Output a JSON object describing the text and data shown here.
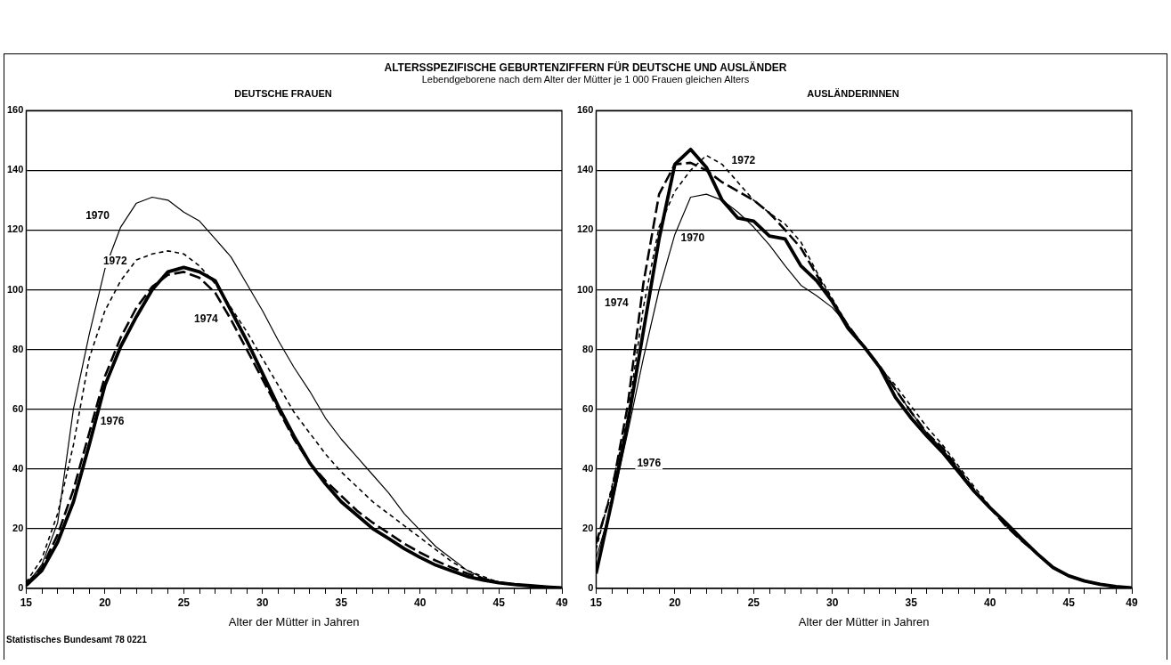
{
  "chart_data": [
    {
      "type": "other",
      "title": "ALTERSSPEZIFISCHE GEBURTENZIFFERN FÜR DEUTSCHE UND AUSLÄNDER",
      "subtitle": "Lebendgeborene nach dem Alter der Mütter je 1 000 Frauen gleichen Alters"
    },
    {
      "type": "line",
      "title": "DEUTSCHE FRAUEN",
      "xlabel": "Alter der Mütter in Jahren",
      "marker": "none",
      "grid": "y",
      "x": [
        15,
        16,
        17,
        18,
        19,
        20,
        21,
        22,
        23,
        24,
        25,
        26,
        27,
        28,
        29,
        30,
        31,
        32,
        33,
        34,
        35,
        36,
        37,
        38,
        39,
        40,
        41,
        42,
        43,
        44,
        45,
        46,
        47,
        48,
        49
      ],
      "xlim": [
        15,
        49
      ],
      "ylim": [
        0,
        160
      ],
      "xticks": [
        15,
        {
          "value": 16,
          "label": null
        },
        {
          "value": 17,
          "label": null
        },
        {
          "value": 18,
          "label": null
        },
        {
          "value": 19,
          "label": null
        },
        20,
        {
          "value": 21,
          "label": null
        },
        {
          "value": 22,
          "label": null
        },
        {
          "value": 23,
          "label": null
        },
        {
          "value": 24,
          "label": null
        },
        25,
        {
          "value": 26,
          "label": null
        },
        {
          "value": 27,
          "label": null
        },
        {
          "value": 28,
          "label": null
        },
        {
          "value": 29,
          "label": null
        },
        30,
        {
          "value": 31,
          "label": null
        },
        {
          "value": 32,
          "label": null
        },
        {
          "value": 33,
          "label": null
        },
        {
          "value": 34,
          "label": null
        },
        35,
        {
          "value": 36,
          "label": null
        },
        {
          "value": 37,
          "label": null
        },
        {
          "value": 38,
          "label": null
        },
        {
          "value": 39,
          "label": null
        },
        40,
        {
          "value": 41,
          "label": null
        },
        {
          "value": 42,
          "label": null
        },
        {
          "value": 43,
          "label": null
        },
        {
          "value": 44,
          "label": null
        },
        45,
        {
          "value": 46,
          "label": null
        },
        {
          "value": 47,
          "label": null
        },
        {
          "value": 48,
          "label": null
        },
        49
      ],
      "yticks": [
        0,
        20,
        40,
        60,
        80,
        100,
        120,
        140,
        160
      ],
      "series": [
        {
          "name": "1970",
          "color": "#000000",
          "line_style": "solid",
          "values": [
            1,
            8,
            22,
            60,
            85,
            107,
            121,
            129,
            131,
            130,
            126,
            123,
            117,
            111,
            102,
            93,
            83,
            74,
            66,
            57,
            50,
            44,
            38,
            32,
            25,
            19.5,
            14,
            10,
            6,
            3.5,
            2,
            1.5,
            1,
            0.5,
            0.3
          ]
        },
        {
          "name": "1972",
          "color": "#000000",
          "line_style": "dashed",
          "values": [
            2,
            10,
            25,
            48,
            77,
            93,
            103,
            110,
            112,
            113,
            112,
            108,
            102,
            94,
            86,
            77,
            68,
            59,
            52,
            45,
            39,
            34,
            29,
            25,
            21,
            17,
            13,
            9,
            6,
            4,
            2,
            1.5,
            1,
            0.5,
            0.3
          ]
        },
        {
          "name": "1974",
          "color": "#000000",
          "line_style": "dashed",
          "values": [
            1.5,
            7,
            18,
            33,
            52,
            71,
            84,
            94,
            101,
            105,
            106,
            104,
            99,
            90,
            80,
            70,
            60,
            50,
            42,
            36,
            31,
            26,
            22,
            18.5,
            15,
            12,
            9.3,
            7,
            5,
            3.3,
            2,
            1.3,
            0.9,
            0.5,
            0.2
          ]
        },
        {
          "name": "1976",
          "color": "#000000",
          "line_style": "solid",
          "values": [
            1,
            6,
            15.5,
            29,
            48,
            68,
            81,
            91,
            100,
            106,
            107.5,
            106,
            103,
            93,
            83,
            72,
            61,
            51,
            42,
            35,
            29,
            24.5,
            20,
            16.7,
            13.3,
            10.4,
            7.8,
            5.9,
            4,
            2.8,
            1.9,
            1.3,
            0.9,
            0.5,
            0.2
          ]
        }
      ],
      "annotations": [
        "Statistisches Bundesamt 78 0221"
      ]
    },
    {
      "type": "line",
      "title": "AUSLÄNDERINNEN",
      "xlabel": "Alter der Mütter in Jahren",
      "marker": "none",
      "grid": "y",
      "x": [
        15,
        16,
        17,
        18,
        19,
        20,
        21,
        22,
        23,
        24,
        25,
        26,
        27,
        28,
        29,
        30,
        31,
        32,
        33,
        34,
        35,
        36,
        37,
        38,
        39,
        40,
        41,
        42,
        43,
        44,
        45,
        46,
        47,
        48,
        49
      ],
      "xlim": [
        15,
        49
      ],
      "ylim": [
        0,
        160
      ],
      "xticks": [
        15,
        {
          "value": 16,
          "label": null
        },
        {
          "value": 17,
          "label": null
        },
        {
          "value": 18,
          "label": null
        },
        {
          "value": 19,
          "label": null
        },
        20,
        {
          "value": 21,
          "label": null
        },
        {
          "value": 22,
          "label": null
        },
        {
          "value": 23,
          "label": null
        },
        {
          "value": 24,
          "label": null
        },
        25,
        {
          "value": 26,
          "label": null
        },
        {
          "value": 27,
          "label": null
        },
        {
          "value": 28,
          "label": null
        },
        {
          "value": 29,
          "label": null
        },
        30,
        {
          "value": 31,
          "label": null
        },
        {
          "value": 32,
          "label": null
        },
        {
          "value": 33,
          "label": null
        },
        {
          "value": 34,
          "label": null
        },
        35,
        {
          "value": 36,
          "label": null
        },
        {
          "value": 37,
          "label": null
        },
        {
          "value": 38,
          "label": null
        },
        {
          "value": 39,
          "label": null
        },
        40,
        {
          "value": 41,
          "label": null
        },
        {
          "value": 42,
          "label": null
        },
        {
          "value": 43,
          "label": null
        },
        {
          "value": 44,
          "label": null
        },
        45,
        {
          "value": 46,
          "label": null
        },
        {
          "value": 47,
          "label": null
        },
        {
          "value": 48,
          "label": null
        },
        49
      ],
      "yticks": [
        0,
        20,
        40,
        60,
        80,
        100,
        120,
        140,
        160
      ],
      "series": [
        {
          "name": "1970",
          "color": "#000000",
          "line_style": "solid",
          "values": [
            10,
            28,
            52,
            77,
            100,
            118.5,
            131,
            132,
            130,
            126,
            121,
            115,
            108,
            101.5,
            98,
            94,
            88,
            81,
            74,
            66.6,
            59,
            52,
            46.5,
            40,
            33,
            27,
            21.5,
            16.5,
            11.6,
            7,
            4.2,
            2.5,
            1.4,
            0.6,
            0.2
          ]
        },
        {
          "name": "1972",
          "color": "#000000",
          "line_style": "dashed",
          "values": [
            13,
            34,
            57,
            94,
            121,
            133,
            140,
            145,
            142,
            136,
            130,
            125.7,
            122,
            116,
            106,
            97,
            88,
            81,
            74,
            68,
            61,
            54,
            48,
            41,
            34,
            27.5,
            21,
            16,
            11.6,
            7,
            4.2,
            2.5,
            1.4,
            0.6,
            0.2
          ]
        },
        {
          "name": "1974",
          "color": "#000000",
          "line_style": "dashed",
          "values": [
            15,
            32.5,
            61,
            102,
            132,
            142,
            142.5,
            140,
            136,
            133,
            130,
            125.7,
            120,
            114,
            105,
            96,
            88,
            81,
            74.5,
            66.6,
            59,
            52,
            47,
            40,
            33,
            27,
            21,
            16,
            11.6,
            7,
            4.2,
            2.5,
            1.4,
            0.6,
            0.2
          ]
        },
        {
          "name": "1976",
          "color": "#000000",
          "line_style": "solid",
          "values": [
            5,
            29,
            55,
            86,
            117,
            142,
            147,
            141,
            130,
            124,
            123,
            118,
            117,
            108,
            103,
            96,
            87,
            81,
            74,
            64,
            57,
            51,
            45.5,
            39,
            32.5,
            27,
            22,
            16.7,
            11.6,
            7,
            4.2,
            2.5,
            1.4,
            0.6,
            0.2
          ]
        }
      ]
    }
  ]
}
